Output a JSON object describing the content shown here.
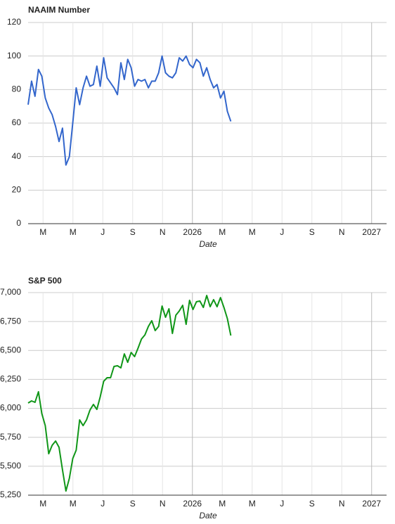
{
  "chart_data": [
    {
      "type": "line",
      "title": "NAAIM Number",
      "x_label": "Date",
      "color": "#3366cc",
      "grid": true,
      "x": [
        1,
        1.23,
        1.46,
        1.69,
        1.92,
        2.15,
        2.38,
        2.61,
        2.84,
        3.07,
        3.3,
        3.53,
        3.76,
        3.99,
        4.22,
        4.45,
        4.68,
        4.91,
        5.14,
        5.37,
        5.6,
        5.83,
        6.06,
        6.29,
        6.52,
        6.75,
        6.98,
        7.21,
        7.44,
        7.67,
        7.9,
        8.13,
        8.36,
        8.59,
        8.82,
        9.05,
        9.28,
        9.51,
        9.74,
        9.97,
        10.2,
        10.43,
        10.66,
        10.89,
        11.12,
        11.35,
        11.58,
        11.81,
        12.04,
        12.27,
        12.5,
        12.73,
        12.96,
        13.19,
        13.42,
        13.65,
        13.88,
        14.11,
        14.34,
        14.57
      ],
      "values": [
        71,
        85,
        76,
        92,
        88,
        75,
        69,
        65,
        58,
        49,
        57,
        35,
        40,
        60,
        81,
        71,
        81,
        88,
        82,
        83,
        94,
        82,
        99,
        87,
        84,
        81,
        77,
        96,
        86,
        98,
        93,
        82,
        86,
        85,
        86,
        81,
        85,
        85,
        90,
        100,
        90,
        88,
        87,
        90,
        99,
        97,
        100,
        95,
        93,
        98,
        96,
        88,
        93,
        86,
        81,
        83,
        75,
        79,
        67,
        61
      ],
      "xlim": [
        1,
        25
      ],
      "xticks": [
        {
          "value": 2,
          "label": "M"
        },
        {
          "value": 4,
          "label": "M"
        },
        {
          "value": 6,
          "label": "J"
        },
        {
          "value": 8,
          "label": "S"
        },
        {
          "value": 10,
          "label": "N"
        },
        {
          "value": 12,
          "label": "2026"
        },
        {
          "value": 14,
          "label": "M"
        },
        {
          "value": 16,
          "label": "M"
        },
        {
          "value": 18,
          "label": "J"
        },
        {
          "value": 20,
          "label": "S"
        },
        {
          "value": 22,
          "label": "N"
        },
        {
          "value": 24,
          "label": "2027"
        }
      ],
      "ylim": [
        0,
        120
      ],
      "yticks": [
        0,
        20,
        40,
        60,
        80,
        100,
        120
      ]
    },
    {
      "type": "line",
      "title": "S&P 500",
      "x_label": "Date",
      "color": "#109618",
      "grid": true,
      "x": [
        1,
        1.23,
        1.46,
        1.69,
        1.92,
        2.15,
        2.38,
        2.61,
        2.84,
        3.07,
        3.3,
        3.53,
        3.76,
        3.99,
        4.22,
        4.45,
        4.68,
        4.91,
        5.14,
        5.37,
        5.6,
        5.83,
        6.06,
        6.29,
        6.52,
        6.75,
        6.98,
        7.21,
        7.44,
        7.67,
        7.9,
        8.13,
        8.36,
        8.59,
        8.82,
        9.05,
        9.28,
        9.51,
        9.74,
        9.97,
        10.2,
        10.43,
        10.66,
        10.89,
        11.12,
        11.35,
        11.58,
        11.81,
        12.04,
        12.27,
        12.5,
        12.73,
        12.96,
        13.19,
        13.42,
        13.65,
        13.88,
        14.11,
        14.34,
        14.57
      ],
      "values": [
        6046,
        6064,
        6052,
        6143,
        5955,
        5851,
        5608,
        5681,
        5718,
        5663,
        5469,
        5286,
        5396,
        5566,
        5639,
        5900,
        5851,
        5900,
        5985,
        6034,
        5991,
        6100,
        6234,
        6265,
        6265,
        6362,
        6368,
        6350,
        6471,
        6398,
        6483,
        6447,
        6520,
        6599,
        6635,
        6708,
        6757,
        6672,
        6708,
        6884,
        6787,
        6860,
        6647,
        6805,
        6841,
        6890,
        6726,
        6933,
        6854,
        6921,
        6927,
        6872,
        6975,
        6878,
        6939,
        6878,
        6957,
        6872,
        6775,
        6629
      ],
      "xlim": [
        1,
        25
      ],
      "xticks": [
        {
          "value": 2,
          "label": "M"
        },
        {
          "value": 4,
          "label": "M"
        },
        {
          "value": 6,
          "label": "J"
        },
        {
          "value": 8,
          "label": "S"
        },
        {
          "value": 10,
          "label": "N"
        },
        {
          "value": 12,
          "label": "2026"
        },
        {
          "value": 14,
          "label": "M"
        },
        {
          "value": 16,
          "label": "M"
        },
        {
          "value": 18,
          "label": "J"
        },
        {
          "value": 20,
          "label": "S"
        },
        {
          "value": 22,
          "label": "N"
        },
        {
          "value": 24,
          "label": "2027"
        }
      ],
      "ylim": [
        5250,
        7000
      ],
      "yticks": [
        {
          "value": 5250,
          "label": "5,250"
        },
        {
          "value": 5500,
          "label": "5,500"
        },
        {
          "value": 5750,
          "label": "5,750"
        },
        {
          "value": 6000,
          "label": "6,000"
        },
        {
          "value": 6250,
          "label": "6,250"
        },
        {
          "value": 6500,
          "label": "6,500"
        },
        {
          "value": 6750,
          "label": "6,750"
        },
        {
          "value": 7000,
          "label": "7,000"
        }
      ]
    }
  ]
}
